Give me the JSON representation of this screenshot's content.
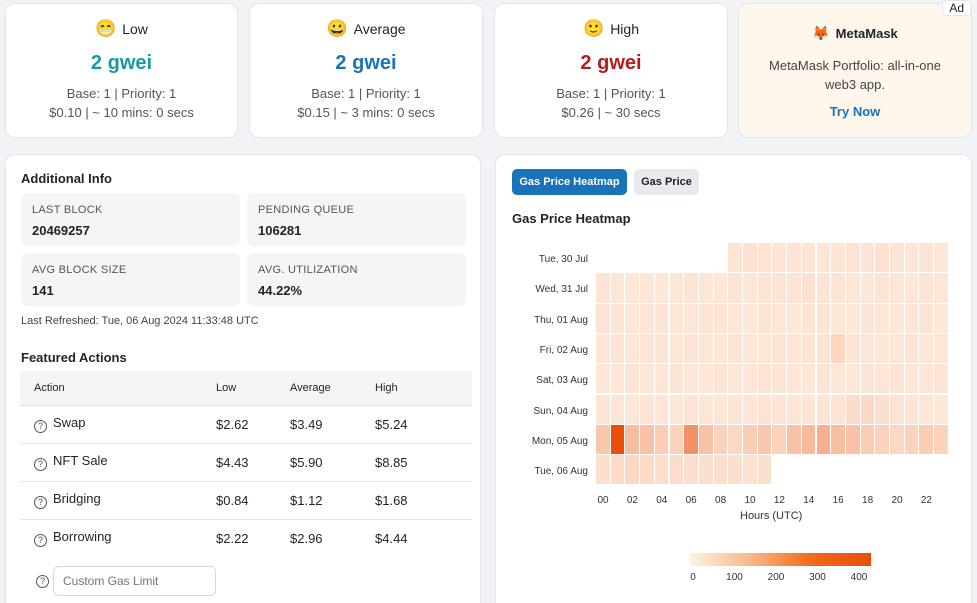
{
  "gas_cards": [
    {
      "emoji": "😁",
      "label": "Low",
      "gwei": "2 gwei",
      "color": "#1a9aa0",
      "line1": "Base: 1 | Priority: 1",
      "line2": "$0.10 | ~ 10 mins: 0 secs"
    },
    {
      "emoji": "😀",
      "label": "Average",
      "gwei": "2 gwei",
      "color": "#1a73b8",
      "line1": "Base: 1 | Priority: 1",
      "line2": "$0.15 | ~ 3 mins: 0 secs"
    },
    {
      "emoji": "🙂",
      "label": "High",
      "gwei": "2 gwei",
      "color": "#b51c1c",
      "line1": "Base: 1 | Priority: 1",
      "line2": "$0.26 | ~ 30 secs"
    }
  ],
  "ad": {
    "badge": "Ad",
    "icon": "fox-icon",
    "glyph": "🦊",
    "title": "MetaMask",
    "text": "MetaMask Portfolio: all-in-one web3 app.",
    "cta": "Try Now"
  },
  "additional": {
    "title": "Additional Info",
    "stats": [
      {
        "label": "LAST BLOCK",
        "value": "20469257"
      },
      {
        "label": "PENDING QUEUE",
        "value": "106281"
      },
      {
        "label": "AVG BLOCK SIZE",
        "value": "141"
      },
      {
        "label": "AVG. UTILIZATION",
        "value": "44.22%"
      }
    ],
    "refreshed": "Last Refreshed: Tue, 06 Aug 2024 11:33:48 UTC"
  },
  "actions": {
    "title": "Featured Actions",
    "headers": [
      "Action",
      "Low",
      "Average",
      "High"
    ],
    "rows": [
      {
        "name": "Swap",
        "low": "$2.62",
        "avg": "$3.49",
        "high": "$5.24"
      },
      {
        "name": "NFT Sale",
        "low": "$4.43",
        "avg": "$5.90",
        "high": "$8.85"
      },
      {
        "name": "Bridging",
        "low": "$0.84",
        "avg": "$1.12",
        "high": "$1.68"
      },
      {
        "name": "Borrowing",
        "low": "$2.22",
        "avg": "$2.96",
        "high": "$4.44"
      }
    ],
    "custom_placeholder": "Custom Gas Limit",
    "help_glyph": "?"
  },
  "tabs": [
    {
      "label": "Gas Price Heatmap",
      "active": true
    },
    {
      "label": "Gas Price",
      "active": false
    }
  ],
  "chart_data": {
    "type": "heatmap",
    "title": "Gas Price Heatmap",
    "xlabel": "Hours (UTC)",
    "ylabel": "",
    "y_categories": [
      "Tue, 30 Jul",
      "Wed, 31 Jul",
      "Thu, 01 Aug",
      "Fri, 02 Aug",
      "Sat, 03 Aug",
      "Sun, 04 Aug",
      "Mon, 05 Aug",
      "Tue, 06 Aug"
    ],
    "x_ticks": [
      "00",
      "02",
      "04",
      "06",
      "08",
      "10",
      "12",
      "14",
      "16",
      "18",
      "20",
      "22"
    ],
    "hours": 24,
    "values": [
      [
        null,
        null,
        null,
        null,
        null,
        null,
        null,
        null,
        null,
        12,
        15,
        14,
        12,
        13,
        12,
        11,
        12,
        14,
        13,
        15,
        12,
        11,
        12,
        10
      ],
      [
        12,
        11,
        10,
        11,
        10,
        11,
        12,
        11,
        10,
        12,
        11,
        13,
        12,
        14,
        15,
        13,
        12,
        11,
        10,
        12,
        11,
        10,
        12,
        11
      ],
      [
        14,
        12,
        10,
        11,
        12,
        10,
        11,
        13,
        12,
        11,
        10,
        12,
        11,
        10,
        13,
        12,
        11,
        10,
        12,
        11,
        10,
        11,
        12,
        10
      ],
      [
        11,
        12,
        10,
        11,
        12,
        10,
        13,
        11,
        10,
        12,
        11,
        10,
        12,
        11,
        13,
        12,
        35,
        12,
        11,
        10,
        11,
        12,
        10,
        11
      ],
      [
        10,
        11,
        12,
        10,
        11,
        12,
        10,
        11,
        12,
        10,
        11,
        13,
        12,
        11,
        10,
        12,
        11,
        10,
        12,
        11,
        13,
        10,
        11,
        12
      ],
      [
        12,
        11,
        10,
        12,
        11,
        10,
        12,
        11,
        10,
        12,
        11,
        14,
        12,
        11,
        13,
        12,
        14,
        22,
        28,
        18,
        14,
        12,
        11,
        10
      ],
      [
        60,
        410,
        80,
        70,
        50,
        40,
        190,
        70,
        40,
        30,
        50,
        60,
        40,
        70,
        90,
        110,
        80,
        70,
        50,
        40,
        30,
        40,
        50,
        40
      ],
      [
        20,
        25,
        30,
        25,
        20,
        22,
        18,
        20,
        19,
        18,
        17,
        18,
        null,
        null,
        null,
        null,
        null,
        null,
        null,
        null,
        null,
        null,
        null,
        null
      ]
    ],
    "colorbar": {
      "min": 0,
      "max": 400,
      "ticks": [
        "0",
        "100",
        "200",
        "300",
        "400"
      ]
    },
    "colors": {
      "low": "#fff3e8",
      "high": "#e94e0b"
    }
  }
}
